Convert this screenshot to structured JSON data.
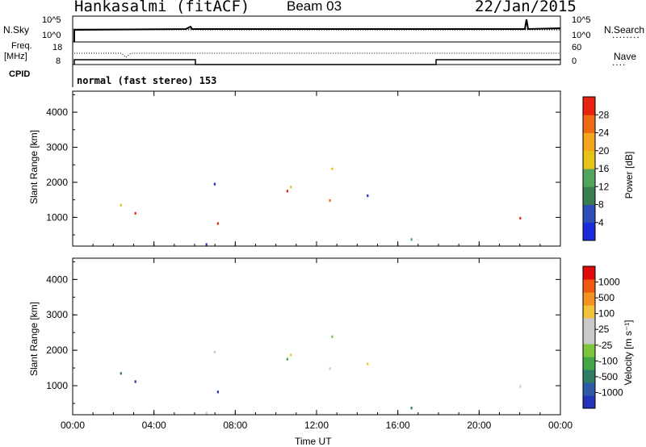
{
  "header": {
    "station": "Hankasalmi (fitACF)",
    "beam": "Beam 03",
    "date": "22/Jan/2015"
  },
  "status_panel": {
    "nsky_label": "N.Sky",
    "nsky_ticks": [
      "10^5",
      "10^0"
    ],
    "nsearch_label": "N.Search",
    "nsearch_ticks": [
      "10^5",
      "10^0"
    ],
    "freq_label_1": "Freq.",
    "freq_label_2": "[MHz]",
    "freq_ticks": [
      "18",
      "8"
    ],
    "nave_label": "Nave",
    "nave_ticks": [
      "60",
      "0"
    ],
    "cpid_label": "CPID",
    "cpid_text": "normal (fast stereo) 153"
  },
  "colors": {
    "power_scale": [
      "#1a2bd9",
      "#2f4fb8",
      "#3a7d50",
      "#52a55c",
      "#e6c21b",
      "#f3a51c",
      "#ef6a12",
      "#e82310"
    ],
    "velocity_scale": [
      "#e10b0b",
      "#ef5a10",
      "#f49220",
      "#f2c23a",
      "#c9c9c9",
      "#c9c9c9",
      "#7cc63d",
      "#41a647",
      "#2f7d64",
      "#2e5aa8",
      "#2533b8"
    ]
  },
  "chart_data": [
    {
      "type": "heatmap",
      "panel": "power",
      "ylabel": "Slant Range [km]",
      "y_ticks": [
        "4000",
        "3000",
        "2000",
        "1000"
      ],
      "y_tick_values": [
        4000,
        3000,
        2000,
        1000
      ],
      "ylim": [
        180,
        4600
      ],
      "x_ticks": [
        "00:00",
        "04:00",
        "08:00",
        "12:00",
        "16:00",
        "20:00",
        "00:00"
      ],
      "x_tick_values": [
        0,
        4,
        8,
        12,
        16,
        20,
        24
      ],
      "xlim": [
        0,
        24
      ],
      "colorbar_label": "Power [dB]",
      "colorbar_ticks": [
        "28",
        "24",
        "20",
        "16",
        "12",
        "8",
        "4"
      ],
      "colorbar_values": [
        28,
        24,
        20,
        16,
        12,
        8,
        4
      ],
      "colorbar_range": [
        0,
        32
      ]
    },
    {
      "type": "heatmap",
      "panel": "velocity",
      "ylabel": "Slant Range [km]",
      "y_ticks": [
        "4000",
        "3000",
        "2000",
        "1000"
      ],
      "y_tick_values": [
        4000,
        3000,
        2000,
        1000
      ],
      "ylim": [
        180,
        4600
      ],
      "x_ticks": [
        "00:00",
        "04:00",
        "08:00",
        "12:00",
        "16:00",
        "20:00",
        "00:00"
      ],
      "x_tick_values": [
        0,
        4,
        8,
        12,
        16,
        20,
        24
      ],
      "xlim": [
        0,
        24
      ],
      "xlabel": "Time UT",
      "colorbar_label": "Velocity [m s⁻¹]",
      "colorbar_ticks": [
        "1000",
        "500",
        "100",
        "25",
        "-25",
        "-100",
        "-500",
        "-1000"
      ]
    }
  ]
}
